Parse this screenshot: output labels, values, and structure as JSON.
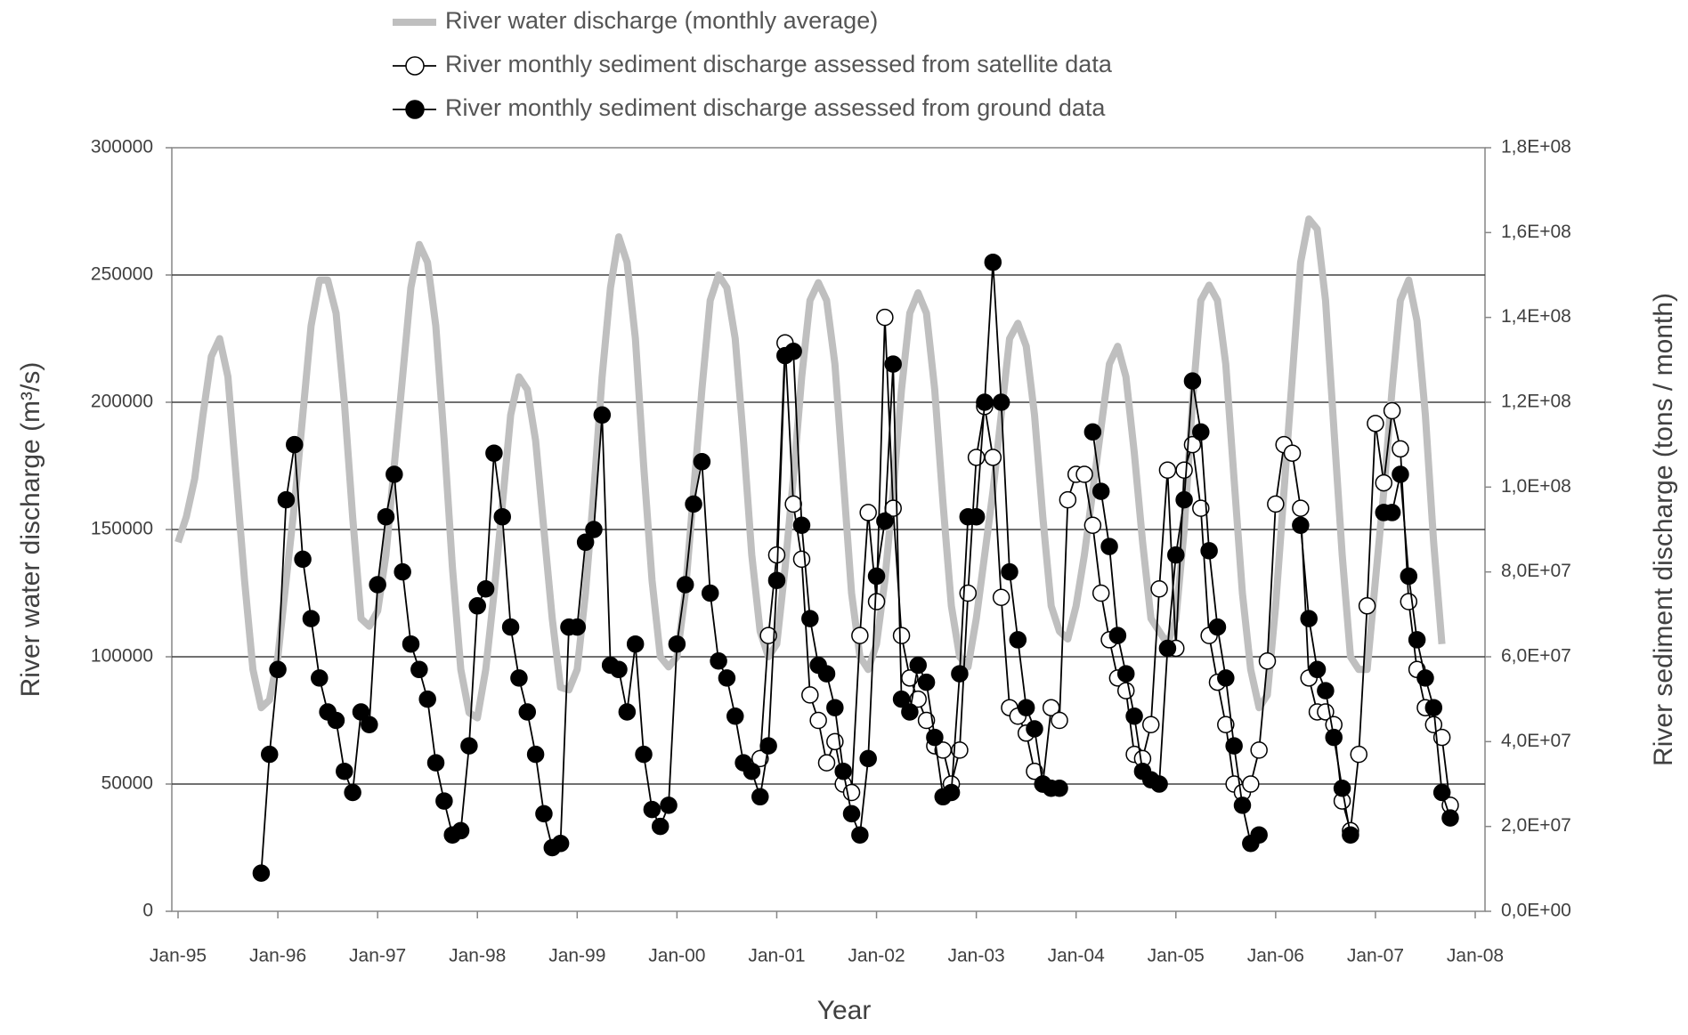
{
  "chart_data": {
    "type": "line",
    "xlabel": "Year",
    "ylabel": "River water discharge (m³/s)",
    "y2label": "River sediment discharge (tons / month)",
    "x": [
      "1995-01",
      "1995-02",
      "1995-03",
      "1995-04",
      "1995-05",
      "1995-06",
      "1995-07",
      "1995-08",
      "1995-09",
      "1995-10",
      "1995-11",
      "1995-12",
      "1996-01",
      "1996-02",
      "1996-03",
      "1996-04",
      "1996-05",
      "1996-06",
      "1996-07",
      "1996-08",
      "1996-09",
      "1996-10",
      "1996-11",
      "1996-12",
      "1997-01",
      "1997-02",
      "1997-03",
      "1997-04",
      "1997-05",
      "1997-06",
      "1997-07",
      "1997-08",
      "1997-09",
      "1997-10",
      "1997-11",
      "1997-12",
      "1998-01",
      "1998-02",
      "1998-03",
      "1998-04",
      "1998-05",
      "1998-06",
      "1998-07",
      "1998-08",
      "1998-09",
      "1998-10",
      "1998-11",
      "1998-12",
      "1999-01",
      "1999-02",
      "1999-03",
      "1999-04",
      "1999-05",
      "1999-06",
      "1999-07",
      "1999-08",
      "1999-09",
      "1999-10",
      "1999-11",
      "1999-12",
      "2000-01",
      "2000-02",
      "2000-03",
      "2000-04",
      "2000-05",
      "2000-06",
      "2000-07",
      "2000-08",
      "2000-09",
      "2000-10",
      "2000-11",
      "2000-12",
      "2001-01",
      "2001-02",
      "2001-03",
      "2001-04",
      "2001-05",
      "2001-06",
      "2001-07",
      "2001-08",
      "2001-09",
      "2001-10",
      "2001-11",
      "2001-12",
      "2002-01",
      "2002-02",
      "2002-03",
      "2002-04",
      "2002-05",
      "2002-06",
      "2002-07",
      "2002-08",
      "2002-09",
      "2002-10",
      "2002-11",
      "2002-12",
      "2003-01",
      "2003-02",
      "2003-03",
      "2003-04",
      "2003-05",
      "2003-06",
      "2003-07",
      "2003-08",
      "2003-09",
      "2003-10",
      "2003-11",
      "2003-12",
      "2004-01",
      "2004-02",
      "2004-03",
      "2004-04",
      "2004-05",
      "2004-06",
      "2004-07",
      "2004-08",
      "2004-09",
      "2004-10",
      "2004-11",
      "2004-12",
      "2005-01",
      "2005-02",
      "2005-03",
      "2005-04",
      "2005-05",
      "2005-06",
      "2005-07",
      "2005-08",
      "2005-09",
      "2005-10",
      "2005-11",
      "2005-12",
      "2006-01",
      "2006-02",
      "2006-03",
      "2006-04",
      "2006-05",
      "2006-06",
      "2006-07",
      "2006-08",
      "2006-09",
      "2006-10",
      "2006-11",
      "2006-12",
      "2007-01",
      "2007-02",
      "2007-03",
      "2007-04",
      "2007-05",
      "2007-06",
      "2007-07",
      "2007-08",
      "2007-09",
      "2007-10"
    ],
    "series": [
      {
        "name": "River water discharge (monthly average)",
        "color": "#bfbfbf",
        "marker": "none",
        "axis": "y",
        "values": [
          145000,
          155000,
          170000,
          195000,
          218000,
          225000,
          210000,
          170000,
          130000,
          95000,
          80000,
          83000,
          100000,
          130000,
          160000,
          195000,
          230000,
          248000,
          248000,
          235000,
          200000,
          155000,
          115000,
          112000,
          118000,
          140000,
          175000,
          210000,
          245000,
          262000,
          255000,
          230000,
          185000,
          135000,
          95000,
          78000,
          76000,
          95000,
          125000,
          160000,
          195000,
          210000,
          205000,
          185000,
          150000,
          115000,
          88000,
          87000,
          95000,
          125000,
          165000,
          210000,
          245000,
          265000,
          255000,
          225000,
          175000,
          130000,
          100000,
          96000,
          100000,
          125000,
          165000,
          205000,
          240000,
          250000,
          245000,
          225000,
          185000,
          140000,
          110000,
          100000,
          105000,
          135000,
          170000,
          210000,
          240000,
          247000,
          240000,
          215000,
          170000,
          125000,
          100000,
          95000,
          105000,
          130000,
          165000,
          205000,
          235000,
          243000,
          235000,
          205000,
          160000,
          120000,
          100000,
          96000,
          115000,
          140000,
          165000,
          195000,
          225000,
          231000,
          222000,
          195000,
          155000,
          120000,
          110000,
          107000,
          120000,
          140000,
          165000,
          190000,
          215000,
          222000,
          210000,
          180000,
          145000,
          115000,
          110000,
          105000,
          115000,
          150000,
          200000,
          240000,
          246000,
          240000,
          215000,
          170000,
          125000,
          95000,
          80000,
          85000,
          120000,
          165000,
          210000,
          255000,
          272000,
          268000,
          240000,
          190000,
          140000,
          100000,
          95000,
          95000,
          130000,
          165000,
          205000,
          240000,
          248000,
          232000,
          195000,
          145000,
          105000,
          null
        ]
      },
      {
        "name": "River monthly sediment discharge assessed from satellite data",
        "color": "#000000",
        "marker": "open",
        "axis": "y2",
        "values": [
          null,
          null,
          null,
          null,
          null,
          null,
          null,
          null,
          null,
          null,
          null,
          null,
          null,
          null,
          null,
          null,
          null,
          null,
          null,
          null,
          null,
          null,
          null,
          null,
          null,
          null,
          null,
          null,
          null,
          null,
          null,
          null,
          null,
          null,
          null,
          null,
          null,
          null,
          null,
          null,
          null,
          null,
          null,
          null,
          null,
          null,
          null,
          null,
          null,
          null,
          null,
          null,
          null,
          null,
          null,
          null,
          null,
          null,
          null,
          null,
          null,
          null,
          null,
          null,
          null,
          null,
          null,
          null,
          null,
          null,
          36000000.0,
          65000000.0,
          84000000.0,
          134000000.0,
          96000000.0,
          83000000.0,
          51000000.0,
          45000000.0,
          35000000.0,
          40000000.0,
          30000000.0,
          28000000.0,
          65000000.0,
          94000000.0,
          73000000.0,
          140000000.0,
          95000000.0,
          65000000.0,
          55000000.0,
          50000000.0,
          45000000.0,
          39000000.0,
          38000000.0,
          30000000.0,
          38000000.0,
          75000000.0,
          107000000.0,
          119000000.0,
          107000000.0,
          74000000.0,
          48000000.0,
          46000000.0,
          42000000.0,
          33000000.0,
          30000000.0,
          48000000.0,
          45000000.0,
          97000000.0,
          103000000.0,
          103000000.0,
          91000000.0,
          75000000.0,
          64000000.0,
          55000000.0,
          52000000.0,
          37000000.0,
          36000000.0,
          44000000.0,
          76000000.0,
          104000000.0,
          62000000.0,
          104000000.0,
          110000000.0,
          95000000.0,
          65000000.0,
          54000000.0,
          44000000.0,
          30000000.0,
          28000000.0,
          30000000.0,
          38000000.0,
          59000000.0,
          96000000.0,
          110000000.0,
          108000000.0,
          95000000.0,
          55000000.0,
          47000000.0,
          47000000.0,
          44000000.0,
          26000000.0,
          19000000.0,
          37000000.0,
          72000000.0,
          115000000.0,
          101000000.0,
          118000000.0,
          109000000.0,
          73000000.0,
          57000000.0,
          48000000.0,
          44000000.0,
          41000000.0,
          25000000.0
        ]
      },
      {
        "name": "River monthly sediment discharge assessed from ground data",
        "color": "#000000",
        "marker": "filled",
        "axis": "y2",
        "values": [
          null,
          null,
          null,
          null,
          null,
          null,
          null,
          null,
          null,
          null,
          9000000.0,
          37000000.0,
          57000000.0,
          97000000.0,
          110000000.0,
          83000000.0,
          69000000.0,
          55000000.0,
          47000000.0,
          45000000.0,
          33000000.0,
          28000000.0,
          47000000.0,
          44000000.0,
          77000000.0,
          93000000.0,
          103000000.0,
          80000000.0,
          63000000.0,
          57000000.0,
          50000000.0,
          35000000.0,
          26000000.0,
          18000000.0,
          19000000.0,
          39000000.0,
          72000000.0,
          76000000.0,
          108000000.0,
          93000000.0,
          67000000.0,
          55000000.0,
          47000000.0,
          37000000.0,
          23000000.0,
          15000000.0,
          16000000.0,
          67000000.0,
          67000000.0,
          87000000.0,
          90000000.0,
          117000000.0,
          58000000.0,
          57000000.0,
          47000000.0,
          63000000.0,
          37000000.0,
          24000000.0,
          20000000.0,
          25000000.0,
          63000000.0,
          77000000.0,
          96000000.0,
          106000000.0,
          75000000.0,
          59000000.0,
          55000000.0,
          46000000.0,
          35000000.0,
          33000000.0,
          27000000.0,
          39000000.0,
          78000000.0,
          131000000.0,
          132000000.0,
          91000000.0,
          69000000.0,
          58000000.0,
          56000000.0,
          48000000.0,
          33000000.0,
          23000000.0,
          18000000.0,
          36000000.0,
          79000000.0,
          92000000.0,
          129000000.0,
          50000000.0,
          47000000.0,
          58000000.0,
          54000000.0,
          41000000.0,
          27000000.0,
          28000000.0,
          56000000.0,
          93000000.0,
          93000000.0,
          120000000.0,
          153000000.0,
          120000000.0,
          80000000.0,
          64000000.0,
          48000000.0,
          43000000.0,
          30000000.0,
          29000000.0,
          29000000.0,
          null,
          null,
          null,
          113000000.0,
          99000000.0,
          86000000.0,
          65000000.0,
          56000000.0,
          46000000.0,
          33000000.0,
          31000000.0,
          30000000.0,
          62000000.0,
          84000000.0,
          97000000.0,
          125000000.0,
          113000000.0,
          85000000.0,
          67000000.0,
          55000000.0,
          39000000.0,
          25000000.0,
          16000000.0,
          18000000.0,
          null,
          null,
          null,
          null,
          91000000.0,
          69000000.0,
          57000000.0,
          52000000.0,
          41000000.0,
          29000000.0,
          18000000.0,
          null,
          null,
          null,
          94000000.0,
          94000000.0,
          103000000.0,
          79000000.0,
          64000000.0,
          55000000.0,
          48000000.0,
          28000000.0,
          22000000.0
        ]
      }
    ],
    "xlim": [
      "1995-01",
      "2008-01"
    ],
    "xticks": [
      {
        "value": "1995-01",
        "label": "Jan-95"
      },
      {
        "value": "1996-01",
        "label": "Jan-96"
      },
      {
        "value": "1997-01",
        "label": "Jan-97"
      },
      {
        "value": "1998-01",
        "label": "Jan-98"
      },
      {
        "value": "1999-01",
        "label": "Jan-99"
      },
      {
        "value": "2000-01",
        "label": "Jan-00"
      },
      {
        "value": "2001-01",
        "label": "Jan-01"
      },
      {
        "value": "2002-01",
        "label": "Jan-02"
      },
      {
        "value": "2003-01",
        "label": "Jan-03"
      },
      {
        "value": "2004-01",
        "label": "Jan-04"
      },
      {
        "value": "2005-01",
        "label": "Jan-05"
      },
      {
        "value": "2006-01",
        "label": "Jan-06"
      },
      {
        "value": "2007-01",
        "label": "Jan-07"
      },
      {
        "value": "2008-01",
        "label": "Jan-08"
      }
    ],
    "ylim": [
      0,
      300000
    ],
    "yticks": [
      0,
      50000,
      100000,
      150000,
      200000,
      250000,
      300000
    ],
    "y2lim": [
      0,
      180000000
    ],
    "y2ticks": [
      {
        "value": 0,
        "label": "0,0E+00"
      },
      {
        "value": 20000000,
        "label": "2,0E+07"
      },
      {
        "value": 40000000,
        "label": "4,0E+07"
      },
      {
        "value": 60000000,
        "label": "6,0E+07"
      },
      {
        "value": 80000000,
        "label": "8,0E+07"
      },
      {
        "value": 100000000,
        "label": "1,0E+08"
      },
      {
        "value": 120000000,
        "label": "1,2E+08"
      },
      {
        "value": 140000000,
        "label": "1,4E+08"
      },
      {
        "value": 160000000,
        "label": "1,6E+08"
      },
      {
        "value": 180000000,
        "label": "1,8E+08"
      }
    ],
    "grid": true,
    "legend": "top"
  }
}
